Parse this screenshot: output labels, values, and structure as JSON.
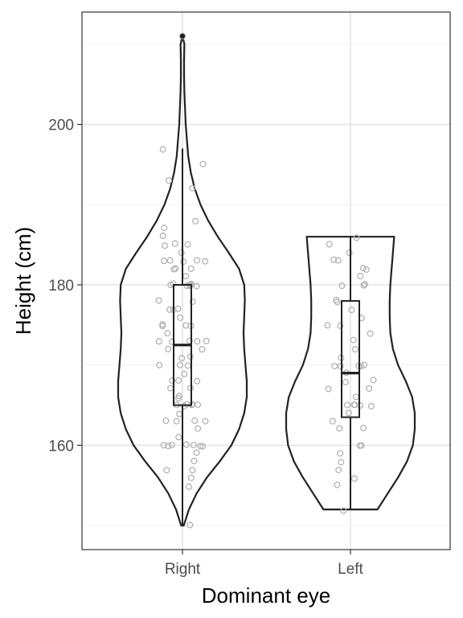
{
  "chart_data": {
    "type": "violin",
    "xlabel": "Dominant eye",
    "ylabel": "Height (cm)",
    "categories": [
      "Right",
      "Left"
    ],
    "ylim": [
      147,
      214
    ],
    "yticks": [
      160,
      180,
      200
    ],
    "grid": true,
    "colors": {
      "outline": "#222222",
      "points": "#b3b3b3",
      "grid_major": "#e5e5e5",
      "grid_minor": "#f0f0f0",
      "panel_border": "#333333"
    },
    "violins": [
      {
        "category": "Right",
        "min": 150,
        "max": 211,
        "box": {
          "q1": 165,
          "median": 172.5,
          "q3": 180,
          "whisker_low": 150,
          "whisker_high": 197
        },
        "outliers": [
          211
        ],
        "density": [
          [
            150,
            0.02
          ],
          [
            152,
            0.1
          ],
          [
            154,
            0.22
          ],
          [
            156,
            0.38
          ],
          [
            158,
            0.58
          ],
          [
            160,
            0.76
          ],
          [
            162,
            0.88
          ],
          [
            164,
            0.96
          ],
          [
            166,
            1.0
          ],
          [
            168,
            1.0
          ],
          [
            170,
            0.98
          ],
          [
            172,
            0.96
          ],
          [
            174,
            0.95
          ],
          [
            176,
            0.96
          ],
          [
            178,
            0.97
          ],
          [
            180,
            0.96
          ],
          [
            182,
            0.88
          ],
          [
            184,
            0.72
          ],
          [
            186,
            0.55
          ],
          [
            188,
            0.4
          ],
          [
            190,
            0.28
          ],
          [
            192,
            0.19
          ],
          [
            194,
            0.13
          ],
          [
            196,
            0.09
          ],
          [
            198,
            0.07
          ],
          [
            200,
            0.05
          ],
          [
            202,
            0.04
          ],
          [
            204,
            0.03
          ],
          [
            206,
            0.025
          ],
          [
            208,
            0.025
          ],
          [
            210,
            0.03
          ],
          [
            211,
            0.0
          ]
        ],
        "points": [
          150,
          155,
          156,
          157,
          157,
          158,
          159,
          160,
          160,
          160,
          160,
          160,
          160,
          160,
          161,
          162,
          163,
          163,
          163,
          163,
          164,
          165,
          165,
          165,
          165,
          165,
          165,
          165,
          166,
          166,
          167,
          167,
          168,
          168,
          168,
          169,
          170,
          170,
          170,
          171,
          171,
          172,
          172,
          173,
          173,
          173,
          173,
          173,
          174,
          175,
          175,
          175,
          175,
          176,
          177,
          177,
          177,
          178,
          178,
          180,
          180,
          180,
          180,
          180,
          180,
          180,
          180,
          181,
          182,
          182,
          182,
          183,
          183,
          183,
          183,
          183,
          184,
          185,
          185,
          185,
          186,
          187,
          188,
          192,
          193,
          195,
          197
        ]
      },
      {
        "category": "Left",
        "min": 152,
        "max": 186,
        "box": {
          "q1": 163.5,
          "median": 169,
          "q3": 178,
          "whisker_low": 152,
          "whisker_high": 186
        },
        "outliers": [],
        "density": [
          [
            152,
            0.42
          ],
          [
            154,
            0.58
          ],
          [
            156,
            0.74
          ],
          [
            158,
            0.88
          ],
          [
            160,
            0.97
          ],
          [
            162,
            1.0
          ],
          [
            164,
            1.0
          ],
          [
            166,
            0.96
          ],
          [
            168,
            0.86
          ],
          [
            170,
            0.74
          ],
          [
            172,
            0.66
          ],
          [
            174,
            0.62
          ],
          [
            176,
            0.61
          ],
          [
            178,
            0.61
          ],
          [
            180,
            0.62
          ],
          [
            182,
            0.64
          ],
          [
            184,
            0.66
          ],
          [
            186,
            0.68
          ]
        ],
        "points": [
          152,
          155,
          156,
          157,
          158,
          159,
          160,
          160,
          162,
          162,
          163,
          164,
          165,
          165,
          165,
          165,
          165,
          166,
          167,
          167,
          168,
          168,
          169,
          170,
          170,
          170,
          170,
          170,
          171,
          172,
          173,
          174,
          175,
          175,
          176,
          177,
          178,
          178,
          180,
          180,
          180,
          181,
          182,
          182,
          183,
          183,
          184,
          185,
          186
        ]
      }
    ]
  }
}
